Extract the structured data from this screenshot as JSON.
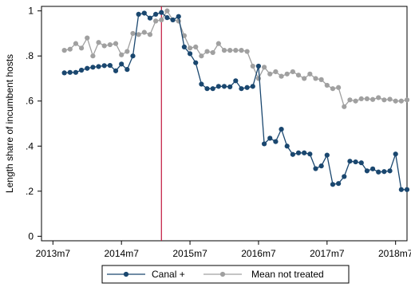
{
  "chart_data": {
    "type": "line",
    "title": "",
    "xlabel": "",
    "ylabel": "Length share of incumbent hosts",
    "x_tick_labels": [
      "2013m7",
      "2014m7",
      "2015m7",
      "2016m7",
      "2017m7",
      "2018m7"
    ],
    "x_tick_months": [
      "2013-07",
      "2014-07",
      "2015-07",
      "2016-07",
      "2017-07",
      "2018-07"
    ],
    "xlim": [
      "2013-05",
      "2018-09"
    ],
    "y_tick_labels": [
      "0",
      ".2",
      ".4",
      ".6",
      ".8",
      "1"
    ],
    "y_tick_values": [
      0,
      0.2,
      0.4,
      0.6,
      0.8,
      1
    ],
    "ylim": [
      -0.02,
      1.02
    ],
    "grid": false,
    "vertical_line": {
      "x": "2015-02",
      "color": "#c0143c"
    },
    "legend": {
      "placement": "bottom",
      "entries": [
        "Canal +",
        "Mean not treated"
      ]
    },
    "x": [
      "2013-09",
      "2013-10",
      "2013-11",
      "2013-12",
      "2014-01",
      "2014-02",
      "2014-03",
      "2014-04",
      "2014-05",
      "2014-06",
      "2014-07",
      "2014-08",
      "2014-09",
      "2014-10",
      "2014-11",
      "2014-12",
      "2015-01",
      "2015-02",
      "2015-03",
      "2015-04",
      "2015-05",
      "2015-06",
      "2015-07",
      "2015-08",
      "2015-09",
      "2015-10",
      "2015-11",
      "2015-12",
      "2016-01",
      "2016-02",
      "2016-03",
      "2016-04",
      "2016-05",
      "2016-06",
      "2016-07",
      "2016-08",
      "2016-09",
      "2016-10",
      "2016-11",
      "2016-12",
      "2017-01",
      "2017-02",
      "2017-03",
      "2017-04",
      "2017-05",
      "2017-06",
      "2017-07",
      "2017-08",
      "2017-09",
      "2017-10",
      "2017-11",
      "2017-12",
      "2018-01",
      "2018-02",
      "2018-03",
      "2018-04",
      "2018-05",
      "2018-06",
      "2018-07",
      "2018-08",
      "2018-09"
    ],
    "series": [
      {
        "name": "Canal +",
        "color": "#1a476f",
        "values": [
          0.725,
          0.727,
          0.727,
          0.737,
          0.745,
          0.75,
          0.753,
          0.757,
          0.758,
          0.734,
          0.764,
          0.74,
          0.8,
          0.985,
          0.99,
          0.968,
          0.985,
          0.993,
          0.97,
          0.96,
          0.975,
          0.84,
          0.81,
          0.77,
          0.675,
          0.655,
          0.655,
          0.665,
          0.665,
          0.663,
          0.69,
          0.655,
          0.66,
          0.665,
          0.755,
          0.41,
          0.435,
          0.42,
          0.475,
          0.4,
          0.363,
          0.37,
          0.37,
          0.365,
          0.3,
          0.312,
          0.36,
          0.23,
          0.234,
          0.265,
          0.333,
          0.33,
          0.326,
          0.29,
          0.299,
          0.285,
          0.287,
          0.29,
          0.365,
          0.207,
          0.207
        ]
      },
      {
        "name": "Mean not treated",
        "color": "#a0a0a0",
        "values": [
          0.825,
          0.83,
          0.855,
          0.835,
          0.88,
          0.8,
          0.86,
          0.845,
          0.85,
          0.855,
          0.805,
          0.82,
          0.9,
          0.895,
          0.905,
          0.895,
          0.955,
          0.96,
          1.0,
          0.96,
          0.955,
          0.89,
          0.835,
          0.84,
          0.8,
          0.82,
          0.815,
          0.855,
          0.825,
          0.825,
          0.825,
          0.825,
          0.82,
          0.755,
          0.7,
          0.75,
          0.72,
          0.73,
          0.71,
          0.72,
          0.73,
          0.715,
          0.7,
          0.72,
          0.7,
          0.695,
          0.67,
          0.655,
          0.66,
          0.575,
          0.605,
          0.6,
          0.61,
          0.61,
          0.607,
          0.615,
          0.605,
          0.608,
          0.6,
          0.6,
          0.605
        ]
      }
    ]
  }
}
